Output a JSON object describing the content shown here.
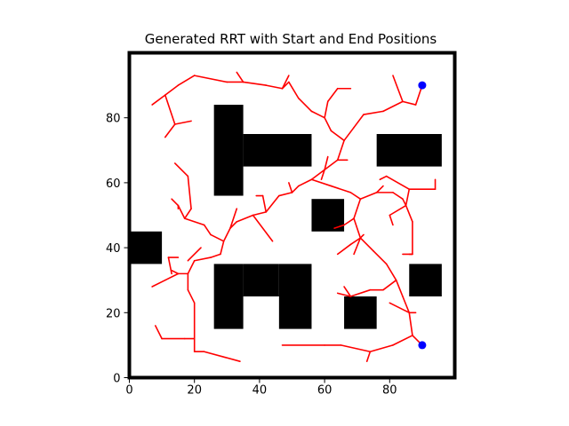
{
  "chart_data": {
    "type": "scatter",
    "title": "Generated RRT with Start and End Positions",
    "xlabel": "",
    "ylabel": "",
    "xlim": [
      0,
      100
    ],
    "ylim": [
      0,
      100
    ],
    "x_ticks": [
      0,
      20,
      40,
      60,
      80
    ],
    "y_ticks": [
      0,
      20,
      40,
      60,
      80
    ],
    "grid": false,
    "colors": {
      "tree": "#ff0000",
      "obstacle": "#000000",
      "endpoint": "#0000ff"
    },
    "obstacles": [
      {
        "x0": 26,
        "y0": 56,
        "x1": 35,
        "y1": 84
      },
      {
        "x0": 35,
        "y0": 65,
        "x1": 56,
        "y1": 75
      },
      {
        "x0": 56,
        "y0": 45,
        "x1": 66,
        "y1": 55
      },
      {
        "x0": 76,
        "y0": 65,
        "x1": 96,
        "y1": 75
      },
      {
        "x0": 0,
        "y0": 35,
        "x1": 10,
        "y1": 45
      },
      {
        "x0": 26,
        "y0": 15,
        "x1": 35,
        "y1": 35
      },
      {
        "x0": 35,
        "y0": 25,
        "x1": 46,
        "y1": 35
      },
      {
        "x0": 46,
        "y0": 15,
        "x1": 56,
        "y1": 35
      },
      {
        "x0": 66,
        "y0": 15,
        "x1": 76,
        "y1": 25
      },
      {
        "x0": 86,
        "y0": 25,
        "x1": 96,
        "y1": 35
      }
    ],
    "points": [
      {
        "name": "start",
        "x": 90,
        "y": 90
      },
      {
        "name": "end",
        "x": 90,
        "y": 10
      }
    ],
    "edges": [
      [
        90,
        90,
        88,
        84
      ],
      [
        88,
        84,
        84,
        85
      ],
      [
        84,
        85,
        81,
        93
      ],
      [
        84,
        85,
        78,
        82
      ],
      [
        78,
        82,
        72,
        81
      ],
      [
        72,
        81,
        69,
        77
      ],
      [
        69,
        77,
        66,
        73
      ],
      [
        66,
        73,
        62,
        76
      ],
      [
        62,
        76,
        60,
        80
      ],
      [
        60,
        80,
        61,
        85
      ],
      [
        61,
        85,
        64,
        89
      ],
      [
        64,
        89,
        68,
        89
      ],
      [
        60,
        80,
        56,
        82
      ],
      [
        56,
        82,
        52,
        86
      ],
      [
        52,
        86,
        49,
        91
      ],
      [
        49,
        91,
        47,
        89
      ],
      [
        47,
        89,
        42,
        90
      ],
      [
        42,
        90,
        35,
        91
      ],
      [
        35,
        91,
        30,
        91
      ],
      [
        30,
        91,
        20,
        93
      ],
      [
        20,
        93,
        15,
        90
      ],
      [
        15,
        90,
        11,
        87
      ],
      [
        11,
        87,
        7,
        84
      ],
      [
        11,
        87,
        14,
        78
      ],
      [
        14,
        78,
        19,
        79
      ],
      [
        14,
        78,
        11,
        74
      ],
      [
        35,
        91,
        33,
        94
      ],
      [
        47,
        89,
        49,
        93
      ],
      [
        66,
        73,
        64,
        67
      ],
      [
        64,
        67,
        60,
        64
      ],
      [
        60,
        64,
        59,
        61
      ],
      [
        60,
        64,
        61,
        68
      ],
      [
        64,
        67,
        67,
        67
      ],
      [
        60,
        64,
        56,
        61
      ],
      [
        56,
        61,
        52,
        59
      ],
      [
        52,
        59,
        50,
        57
      ],
      [
        50,
        57,
        49,
        60
      ],
      [
        50,
        57,
        46,
        56
      ],
      [
        46,
        56,
        42,
        51
      ],
      [
        42,
        51,
        41,
        56
      ],
      [
        41,
        56,
        39,
        56
      ],
      [
        42,
        51,
        38,
        50
      ],
      [
        38,
        50,
        33,
        48
      ],
      [
        33,
        48,
        31,
        46
      ],
      [
        31,
        46,
        33,
        52
      ],
      [
        31,
        46,
        29,
        42
      ],
      [
        29,
        42,
        25,
        44
      ],
      [
        25,
        44,
        23,
        47
      ],
      [
        23,
        47,
        17,
        49
      ],
      [
        17,
        49,
        15,
        53
      ],
      [
        15,
        53,
        13,
        55
      ],
      [
        15,
        53,
        15,
        52
      ],
      [
        17,
        49,
        19,
        52
      ],
      [
        19,
        52,
        18,
        62
      ],
      [
        18,
        62,
        14,
        66
      ],
      [
        38,
        50,
        44,
        42
      ],
      [
        29,
        42,
        28,
        38
      ],
      [
        28,
        38,
        25,
        37
      ],
      [
        25,
        37,
        20,
        36
      ],
      [
        20,
        36,
        18,
        32
      ],
      [
        18,
        32,
        15,
        32
      ],
      [
        15,
        32,
        13,
        33
      ],
      [
        13,
        32,
        12,
        37
      ],
      [
        12,
        37,
        15,
        37
      ],
      [
        15,
        32,
        11,
        30
      ],
      [
        11,
        30,
        7,
        28
      ],
      [
        18,
        32,
        18,
        27
      ],
      [
        18,
        27,
        20,
        23
      ],
      [
        20,
        23,
        20,
        8
      ],
      [
        20,
        8,
        23,
        8
      ],
      [
        23,
        8,
        34,
        5
      ],
      [
        20,
        12,
        17,
        12
      ],
      [
        17,
        12,
        10,
        12
      ],
      [
        10,
        12,
        8,
        16
      ],
      [
        18,
        36,
        22,
        40
      ],
      [
        56,
        61,
        62,
        59
      ],
      [
        62,
        59,
        68,
        57
      ],
      [
        68,
        57,
        71,
        55
      ],
      [
        71,
        55,
        76,
        57
      ],
      [
        76,
        57,
        78,
        59
      ],
      [
        76,
        57,
        81,
        57
      ],
      [
        81,
        57,
        84,
        55
      ],
      [
        84,
        55,
        85,
        53
      ],
      [
        85,
        53,
        80,
        50
      ],
      [
        80,
        50,
        81,
        47
      ],
      [
        85,
        53,
        87,
        48
      ],
      [
        87,
        48,
        87,
        38
      ],
      [
        87,
        38,
        86,
        38
      ],
      [
        84,
        38,
        87,
        38
      ],
      [
        85,
        53,
        86,
        58
      ],
      [
        86,
        58,
        94,
        58
      ],
      [
        94,
        58,
        94,
        61
      ],
      [
        86,
        58,
        79,
        62
      ],
      [
        79,
        62,
        77,
        61
      ],
      [
        71,
        55,
        69,
        49
      ],
      [
        69,
        49,
        66,
        47
      ],
      [
        66,
        47,
        63,
        46
      ],
      [
        69,
        49,
        71,
        43
      ],
      [
        71,
        43,
        72,
        44
      ],
      [
        71,
        43,
        75,
        39
      ],
      [
        75,
        39,
        79,
        35
      ],
      [
        79,
        35,
        82,
        30
      ],
      [
        82,
        30,
        84,
        25
      ],
      [
        84,
        25,
        86,
        20
      ],
      [
        86,
        20,
        87,
        13
      ],
      [
        87,
        13,
        90,
        10
      ],
      [
        87,
        13,
        81,
        10
      ],
      [
        81,
        10,
        74,
        8
      ],
      [
        74,
        8,
        73,
        5
      ],
      [
        74,
        8,
        65,
        10
      ],
      [
        65,
        10,
        60,
        10
      ],
      [
        60,
        10,
        47,
        10
      ],
      [
        82,
        30,
        78,
        27
      ],
      [
        78,
        27,
        74,
        27
      ],
      [
        74,
        27,
        68,
        25
      ],
      [
        68,
        25,
        66,
        28
      ],
      [
        68,
        25,
        64,
        26
      ],
      [
        71,
        43,
        68,
        41
      ],
      [
        68,
        41,
        64,
        38
      ],
      [
        71,
        43,
        69,
        38
      ],
      [
        86,
        20,
        80,
        23
      ],
      [
        86,
        20,
        88,
        20
      ]
    ]
  }
}
